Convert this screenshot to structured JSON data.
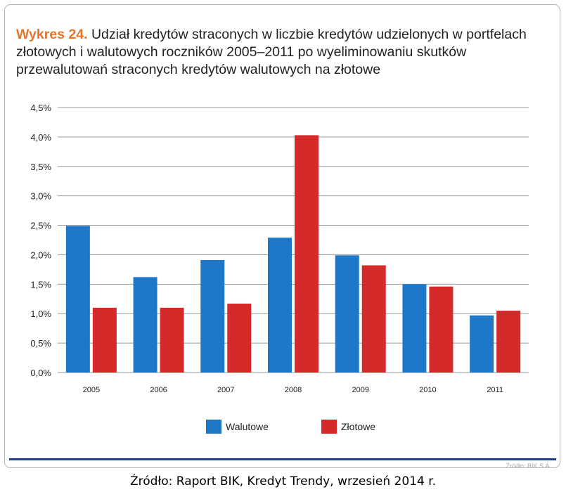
{
  "title": {
    "prefix": "Wykres 24.",
    "text": "Udział kredytów straconych w liczbie kredytów udzielonych w portfelach złotowych i walutowych roczników 2005–2011 po wyeliminowaniu skutków przewalutowań straconych kredytów walutowych na złotowe"
  },
  "source_small": "Źródło: BIK S.A.",
  "caption": "Źródło: Raport BIK, Kredyt Trendy, wrzesień 2014 r.",
  "colors": {
    "walutowe": "#1f77c7",
    "zlotowe": "#d42a2a",
    "grid": "#9a9a9a",
    "title_accent": "#e4752b"
  },
  "chart_data": {
    "type": "bar",
    "categories": [
      "2005",
      "2006",
      "2007",
      "2008",
      "2009",
      "2010",
      "2011"
    ],
    "series": [
      {
        "name": "Walutowe",
        "values": [
          2.49,
          1.62,
          1.91,
          2.29,
          1.99,
          1.5,
          0.97
        ]
      },
      {
        "name": "Złotowe",
        "values": [
          1.1,
          1.1,
          1.17,
          4.03,
          1.82,
          1.46,
          1.05
        ]
      }
    ],
    "ylim": [
      0,
      4.5
    ],
    "ytick_values": [
      0,
      0.5,
      1,
      1.5,
      2,
      2.5,
      3,
      3.5,
      4,
      4.5
    ],
    "ytick_labels": [
      "0,0%",
      "0,5%",
      "1,0%",
      "1,5%",
      "2,0%",
      "2,5%",
      "3,0%",
      "3,5%",
      "4,0%",
      "4,5%"
    ],
    "grid": true,
    "legend": "bottom-center"
  }
}
